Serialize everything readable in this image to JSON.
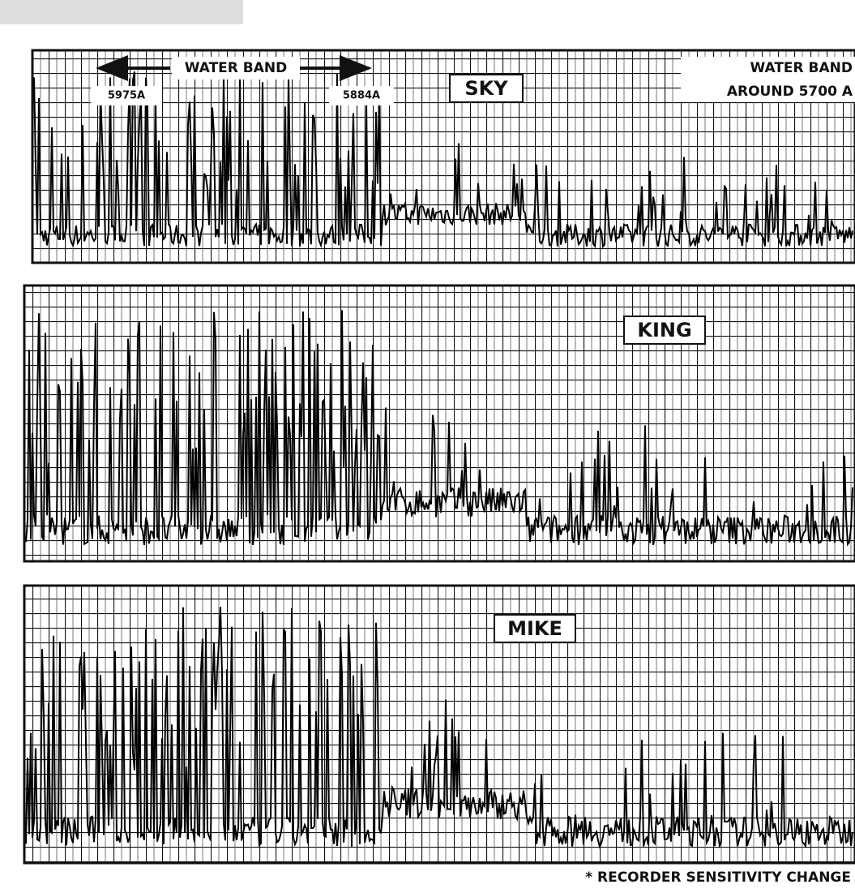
{
  "header": {
    "water_band_left": "WATER BAND",
    "wavelength_left": "5975A",
    "wavelength_right": "5884A",
    "water_band_right": "WATER BAND",
    "around": "AROUND 5700 A"
  },
  "panels": [
    {
      "label": "SKY"
    },
    {
      "label": "KING"
    },
    {
      "label": "MIKE"
    }
  ],
  "footnote": "* RECORDER SENSITIVITY CHANGE"
}
